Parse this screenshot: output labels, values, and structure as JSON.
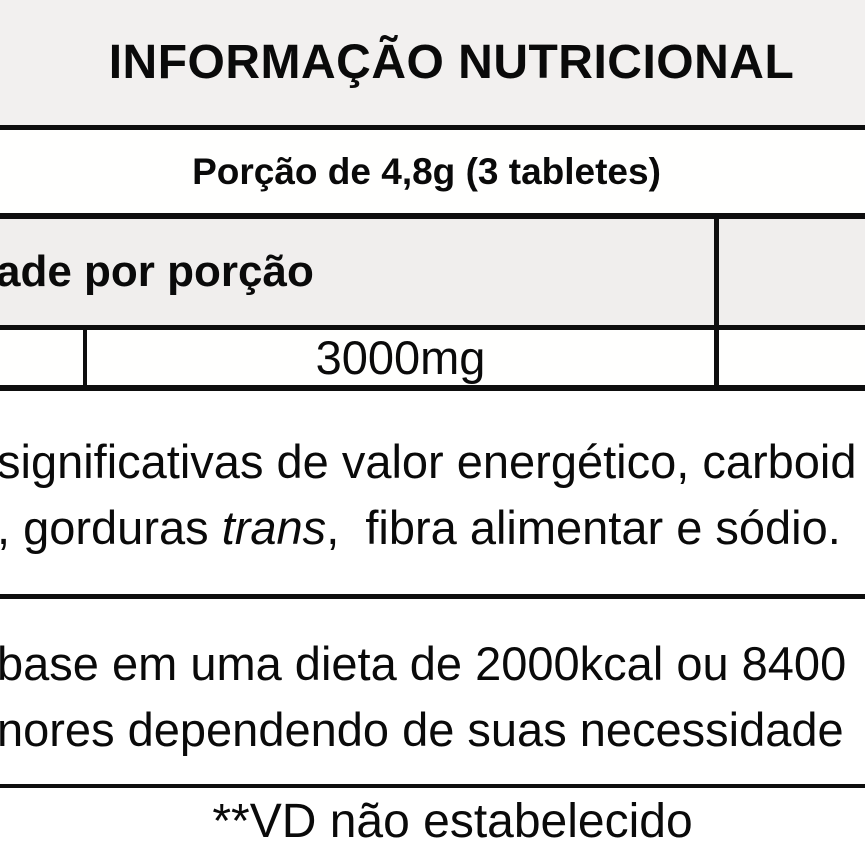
{
  "label": {
    "title": "INFORMAÇÃO NUTRICIONAL",
    "serving": "Porção de 4,8g (3 tabletes)",
    "table": {
      "quantity_header": "ade por porção",
      "value": "3000mg"
    },
    "note_significant": {
      "line1": "significativas de valor energético, carboid",
      "line2_pre": ", gorduras ",
      "line2_italic": "trans",
      "line2_post": ",  fibra alimentar e sódio."
    },
    "note_daily_values": {
      "line1": "base em uma dieta de 2000kcal ou 8400",
      "line2": "nores dependendo de suas necessidade"
    },
    "footnote": "**VD não estabelecido"
  },
  "colors": {
    "band_background": "#f2f0ef",
    "header_row_background": "#f0eeed",
    "border": "#0e0e0e",
    "text": "#0a0a0a"
  }
}
